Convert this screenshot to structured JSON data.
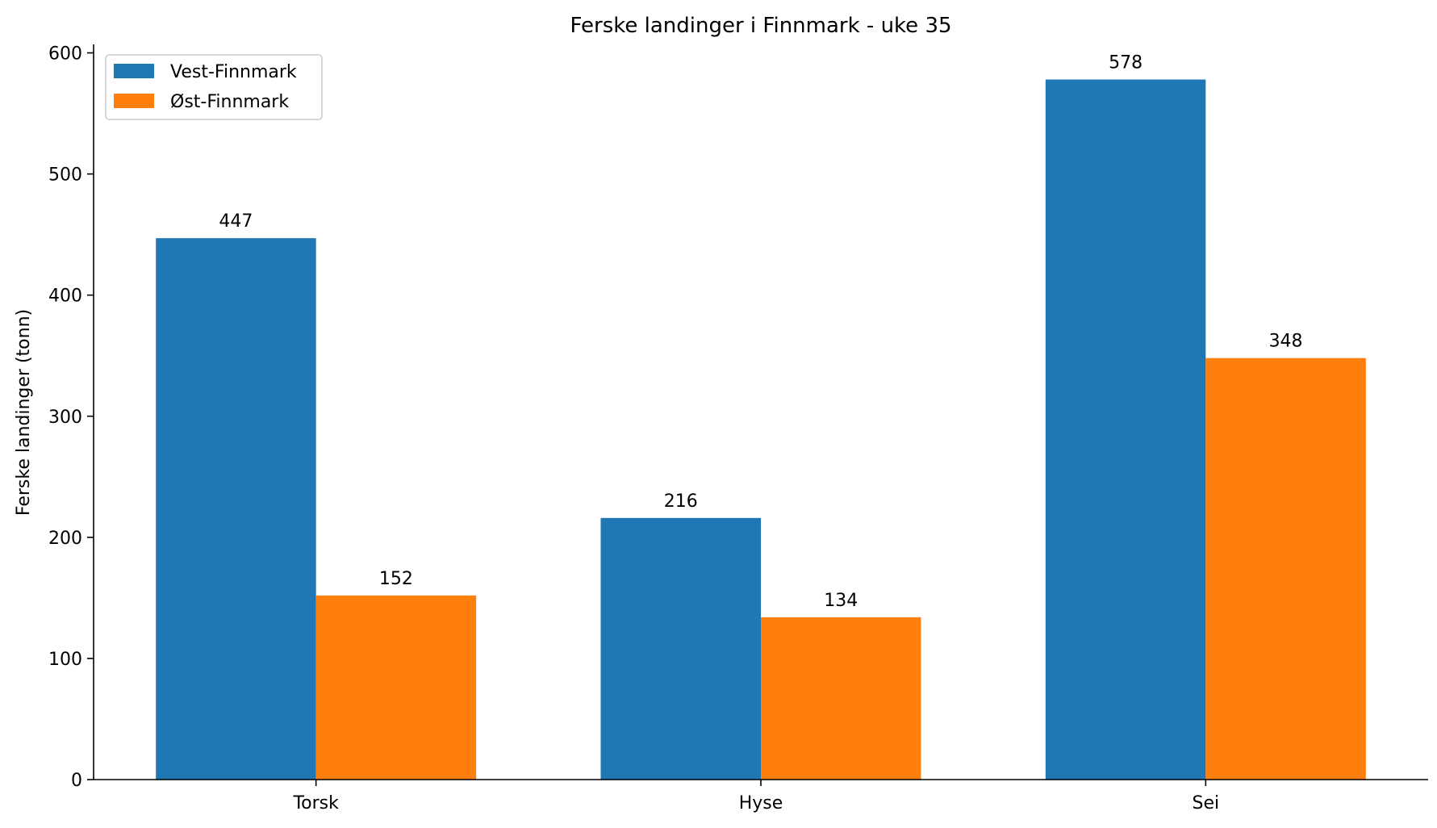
{
  "chart_data": {
    "type": "bar",
    "title": "Ferske landinger i Finnmark - uke 35",
    "xlabel": "",
    "ylabel": "Ferske landinger (tonn)",
    "categories": [
      "Torsk",
      "Hyse",
      "Sei"
    ],
    "series": [
      {
        "name": "Vest-Finnmark",
        "values": [
          447,
          216,
          578
        ],
        "color": "#1f77b4"
      },
      {
        "name": "Øst-Finnmark",
        "values": [
          152,
          134,
          348
        ],
        "color": "#ff7f0e"
      }
    ],
    "ylim": [
      0,
      607
    ],
    "yticks": [
      0,
      100,
      200,
      300,
      400,
      500,
      600
    ],
    "grid": false,
    "legend_position": "top-left",
    "data_labels": true
  }
}
